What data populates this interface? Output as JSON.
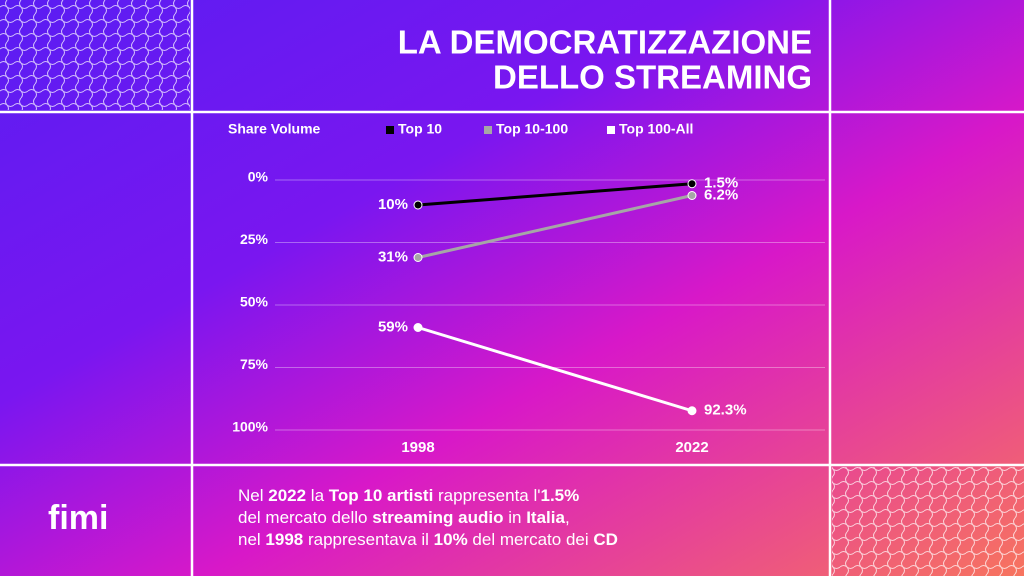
{
  "title_lines": [
    "LA DEMOCRATIZZAZIONE",
    "DELLO STREAMING"
  ],
  "logo": "fimi",
  "footer": {
    "lines": [
      [
        {
          "text": "Nel ",
          "bold": false
        },
        {
          "text": "2022",
          "bold": true
        },
        {
          "text": " la ",
          "bold": false
        },
        {
          "text": "Top 10 artisti",
          "bold": true
        },
        {
          "text": " rappresenta l'",
          "bold": false
        },
        {
          "text": "1.5%",
          "bold": true
        }
      ],
      [
        {
          "text": "del mercato dello ",
          "bold": false
        },
        {
          "text": "streaming audio",
          "bold": true
        },
        {
          "text": " in ",
          "bold": false
        },
        {
          "text": "Italia",
          "bold": true
        },
        {
          "text": ",",
          "bold": false
        }
      ],
      [
        {
          "text": "nel ",
          "bold": false
        },
        {
          "text": "1998",
          "bold": true
        },
        {
          "text": " rappresentava il ",
          "bold": false
        },
        {
          "text": "10%",
          "bold": true
        },
        {
          "text": " del mercato dei ",
          "bold": false
        },
        {
          "text": "CD",
          "bold": true
        }
      ]
    ]
  },
  "chart_data": {
    "type": "line",
    "legend_title": "Share Volume",
    "categories": [
      "1998",
      "2022"
    ],
    "series": [
      {
        "name": "Top 10",
        "color": "#000000",
        "values": [
          10,
          1.5
        ],
        "value_labels": [
          "10%",
          "1.5%"
        ]
      },
      {
        "name": "Top 10-100",
        "color": "#a6a6a6",
        "values": [
          31,
          6.2
        ],
        "value_labels": [
          "31%",
          "6.2%"
        ]
      },
      {
        "name": "Top 100-All",
        "color": "#ffffff",
        "values": [
          59,
          92.3
        ],
        "value_labels": [
          "59%",
          "92.3%"
        ]
      }
    ],
    "ylim": [
      0,
      100
    ],
    "y_inverted": true,
    "yticks": [
      {
        "value": 0,
        "label": "0%"
      },
      {
        "value": 25,
        "label": "25%"
      },
      {
        "value": 50,
        "label": "50%"
      },
      {
        "value": 75,
        "label": "75%"
      },
      {
        "value": 100,
        "label": "100%"
      }
    ],
    "grid": true,
    "legend_position": "top"
  }
}
